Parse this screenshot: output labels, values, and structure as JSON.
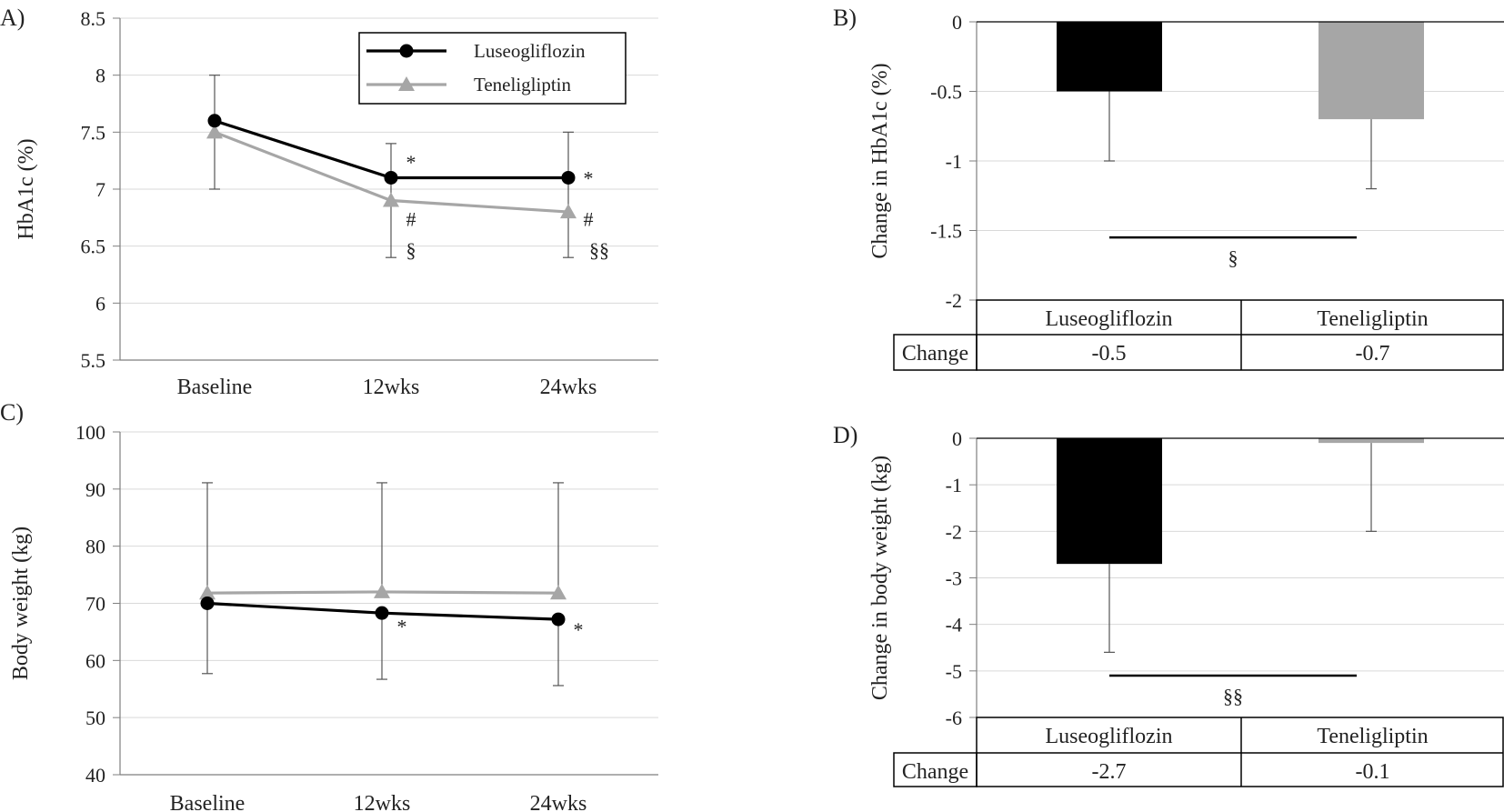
{
  "colors": {
    "luse": "#000000",
    "tene": "#a6a6a6",
    "grid": "#d9d9d9",
    "axis": "#7f7f7f"
  },
  "chart_data": [
    {
      "id": "A",
      "panel_label": "A)",
      "type": "line",
      "ylabel": "HbA1c (%)",
      "ylim": [
        5.5,
        8.5
      ],
      "yticks": [
        "8.5",
        "8",
        "7.5",
        "7",
        "6.5",
        "6",
        "5.5"
      ],
      "categories": [
        "Baseline",
        "12wks",
        "24wks"
      ],
      "series": [
        {
          "name": "Luseogliflozin",
          "values": [
            7.6,
            7.1,
            7.1
          ],
          "err_high": [
            8.0,
            7.4,
            7.5
          ],
          "err_low": [
            7.0,
            6.4,
            6.4
          ],
          "marker": "circle"
        },
        {
          "name": "Teneligliptin",
          "values": [
            7.5,
            6.9,
            6.8
          ],
          "marker": "triangle"
        }
      ],
      "annotations": [
        {
          "cat": 1,
          "y": 7.24,
          "text": "*"
        },
        {
          "cat": 2,
          "y": 7.1,
          "text": "*"
        },
        {
          "cat": 1,
          "y": 6.74,
          "text": "#"
        },
        {
          "cat": 2,
          "y": 6.74,
          "text": "#"
        },
        {
          "cat": 1,
          "y": 6.47,
          "text": "§"
        },
        {
          "cat": 2,
          "y": 6.47,
          "text": "§§"
        }
      ],
      "legend": [
        "Luseogliflozin",
        "Teneligliptin"
      ]
    },
    {
      "id": "B",
      "panel_label": "B)",
      "type": "bar",
      "ylabel": "Change in HbA1c (%)",
      "ylim": [
        -2,
        0
      ],
      "yticks": [
        "0",
        "-0.5",
        "-1",
        "-1.5",
        "-2"
      ],
      "categories": [
        "Luseogliflozin",
        "Teneligliptin"
      ],
      "values": [
        -0.5,
        -0.7
      ],
      "err_low": [
        -1.0,
        -1.2
      ],
      "significance": {
        "y": -1.55,
        "text": "§"
      },
      "table": {
        "row_label": "Change",
        "values": [
          "-0.5",
          "-0.7"
        ]
      }
    },
    {
      "id": "C",
      "panel_label": "C)",
      "type": "line",
      "ylabel": "Body weight  (kg)",
      "ylim": [
        40,
        100
      ],
      "yticks": [
        "100",
        "90",
        "80",
        "70",
        "60",
        "50",
        "40"
      ],
      "categories": [
        "Baseline",
        "12wks",
        "24wks"
      ],
      "series": [
        {
          "name": "Luseogliflozin",
          "values": [
            70.0,
            68.3,
            67.2
          ],
          "err_low": [
            57.7,
            56.7,
            55.6
          ],
          "marker": "circle"
        },
        {
          "name": "Teneligliptin",
          "values": [
            71.8,
            72.0,
            71.8
          ],
          "err_high": [
            91.1,
            91.1,
            91.1
          ],
          "marker": "triangle"
        }
      ],
      "annotations": [
        {
          "cat": 1,
          "y": 66.0,
          "text": "*"
        },
        {
          "cat": 2,
          "y": 65.5,
          "text": "*"
        }
      ]
    },
    {
      "id": "D",
      "panel_label": "D)",
      "type": "bar",
      "ylabel": "Change in body weight  (kg)",
      "ylim": [
        -6,
        0
      ],
      "yticks": [
        "0",
        "-1",
        "-2",
        "-3",
        "-4",
        "-5",
        "-6"
      ],
      "categories": [
        "Luseogliflozin",
        "Teneligliptin"
      ],
      "values": [
        -2.7,
        -0.1
      ],
      "err_low": [
        -4.6,
        -2.0
      ],
      "significance": {
        "y": -5.1,
        "text": "§§"
      },
      "table": {
        "row_label": "Change",
        "values": [
          "-2.7",
          "-0.1"
        ]
      }
    }
  ]
}
